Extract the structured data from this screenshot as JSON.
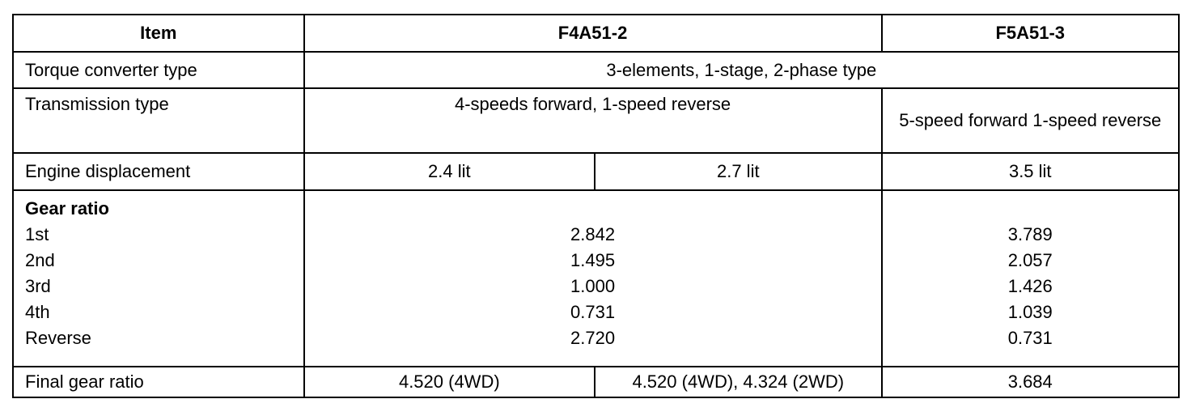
{
  "header": {
    "item": "Item",
    "col1": "F4A51-2",
    "col2": "F5A51-3"
  },
  "torque": {
    "label": "Torque converter type",
    "value": "3-elements, 1-stage, 2-phase type"
  },
  "transmission": {
    "label": "Transmission type",
    "f4": "4-speeds forward, 1-speed reverse",
    "f5": "5-speed forward 1-speed reverse"
  },
  "engine": {
    "label": "Engine displacement",
    "a": "2.4  lit",
    "b": "2.7  lit",
    "c": "3.5  lit"
  },
  "gear": {
    "title": "Gear ratio",
    "rows": [
      {
        "label": "1st",
        "f4": "2.842",
        "f5": "3.789"
      },
      {
        "label": "2nd",
        "f4": "1.495",
        "f5": "2.057"
      },
      {
        "label": "3rd",
        "f4": "1.000",
        "f5": "1.426"
      },
      {
        "label": "4th",
        "f4": "0.731",
        "f5": "1.039"
      },
      {
        "label": "Reverse",
        "f4": "2.720",
        "f5": "0.731"
      }
    ]
  },
  "final": {
    "label": "Final gear ratio",
    "a": "4.520 (4WD)",
    "b": "4.520 (4WD), 4.324 (2WD)",
    "c": "3.684"
  }
}
